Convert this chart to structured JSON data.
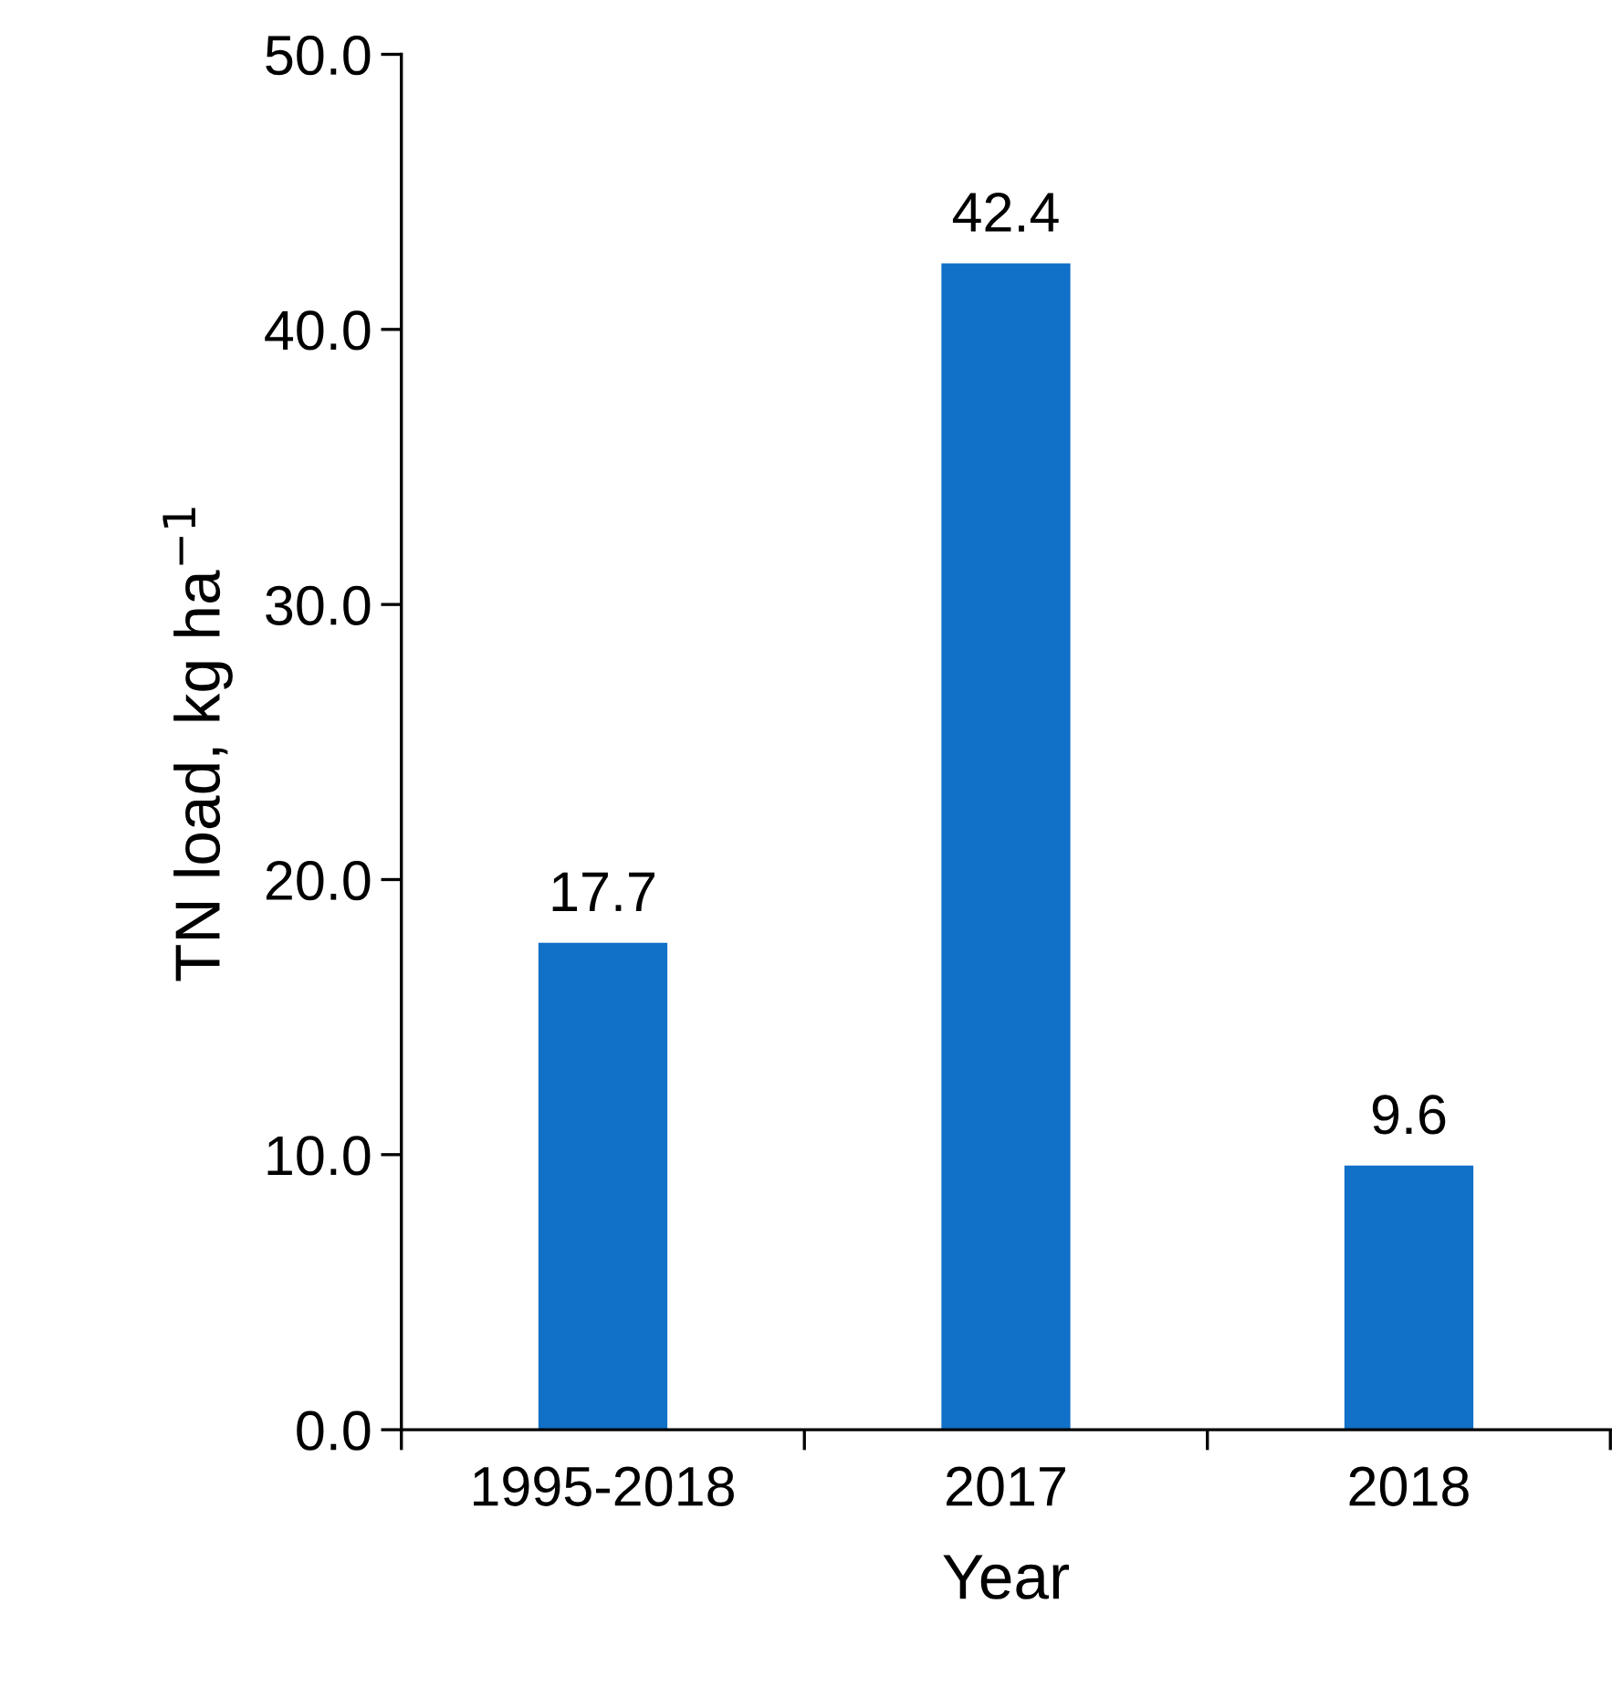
{
  "chart_data": {
    "type": "bar",
    "categories": [
      "1995-2018",
      "2017",
      "2018"
    ],
    "values": [
      17.7,
      42.4,
      9.6
    ],
    "color": "#1170c8",
    "xlabel": "Year",
    "ylabel": "TN load, kg ha$^{−1}$",
    "ylim": [
      0,
      50
    ],
    "yticks": [
      {
        "value": 0,
        "label": "0.0"
      },
      {
        "value": 10,
        "label": "10.0"
      },
      {
        "value": 20,
        "label": "20.0"
      },
      {
        "value": 30,
        "label": "30.0"
      },
      {
        "value": 40,
        "label": "40.0"
      },
      {
        "value": 50,
        "label": "50.0"
      }
    ],
    "data_labels": true,
    "grid": false,
    "legend": false
  }
}
